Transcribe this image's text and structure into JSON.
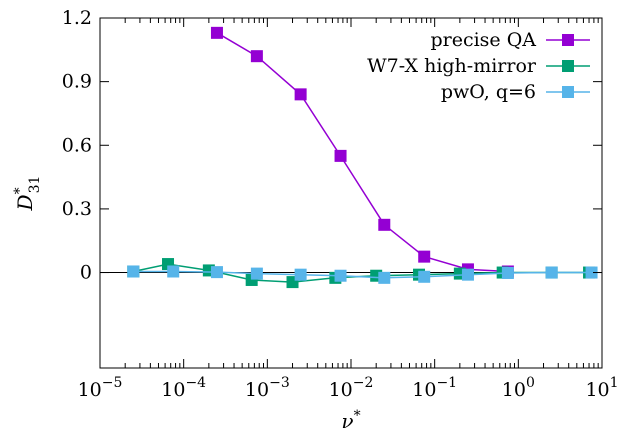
{
  "chart_data": {
    "type": "line",
    "xlabel": "ν*",
    "ylabel": "D*31",
    "x_scale": "log",
    "xlim": [
      1e-05,
      10
    ],
    "ylim": [
      -0.45,
      1.2
    ],
    "x_ticks": [
      {
        "value": 1e-05,
        "base": "10",
        "exp": "−5"
      },
      {
        "value": 0.0001,
        "base": "10",
        "exp": "−4"
      },
      {
        "value": 0.001,
        "base": "10",
        "exp": "−3"
      },
      {
        "value": 0.01,
        "base": "10",
        "exp": "−2"
      },
      {
        "value": 0.1,
        "base": "10",
        "exp": "−1"
      },
      {
        "value": 1,
        "base": "10",
        "exp": "0"
      },
      {
        "value": 10,
        "base": "10",
        "exp": "1"
      }
    ],
    "y_ticks": [
      {
        "value": 0,
        "label": "0"
      },
      {
        "value": 0.3,
        "label": "0.3"
      },
      {
        "value": 0.6,
        "label": "0.6"
      },
      {
        "value": 0.9,
        "label": "0.9"
      },
      {
        "value": 1.2,
        "label": "1.2"
      }
    ],
    "grid": false,
    "legend_position": "top-right",
    "zero_line": true,
    "series": [
      {
        "name": "precise QA",
        "color": "#9400d3",
        "marker": "square",
        "x": [
          0.00025,
          0.00075,
          0.0025,
          0.0075,
          0.025,
          0.075,
          0.25,
          0.75
        ],
        "y": [
          1.13,
          1.02,
          0.84,
          0.55,
          0.225,
          0.075,
          0.015,
          0.005
        ]
      },
      {
        "name": "W7-X high-mirror",
        "color": "#009e73",
        "marker": "square",
        "x": [
          2.5e-05,
          6.5e-05,
          0.0002,
          0.00065,
          0.002,
          0.0065,
          0.02,
          0.065,
          0.2,
          0.65,
          2.5,
          7
        ],
        "y": [
          0.005,
          0.04,
          0.01,
          -0.035,
          -0.045,
          -0.025,
          -0.015,
          -0.01,
          -0.005,
          0.0,
          0.0,
          0.0
        ]
      },
      {
        "name": "pwO, q=6",
        "color": "#56b4e9",
        "marker": "square",
        "x": [
          2.5e-05,
          7.5e-05,
          0.00025,
          0.00075,
          0.0025,
          0.0075,
          0.025,
          0.075,
          0.25,
          0.75,
          2.5,
          7.5
        ],
        "y": [
          0.005,
          0.005,
          0.002,
          -0.005,
          -0.01,
          -0.015,
          -0.025,
          -0.02,
          -0.01,
          -0.002,
          0.0,
          0.0
        ]
      }
    ]
  }
}
